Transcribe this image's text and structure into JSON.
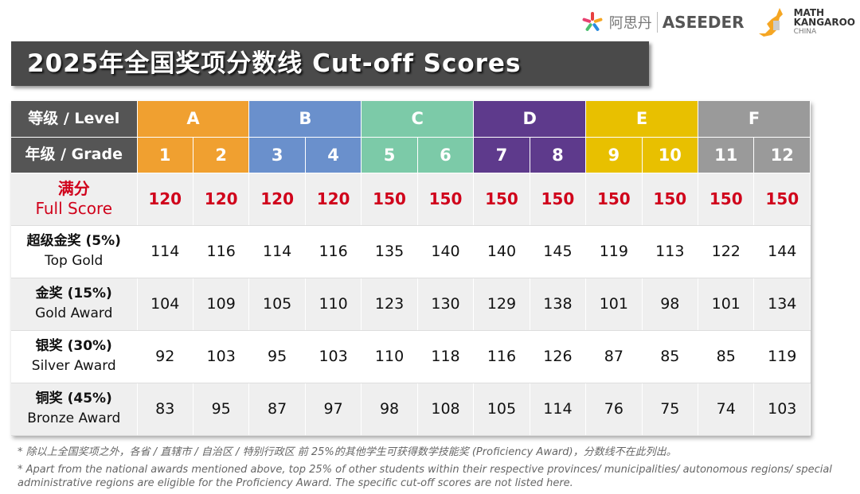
{
  "logos": {
    "aseeder_cn": "阿思丹",
    "aseeder_en": "ASEEDER",
    "mk_line1": "MATH",
    "mk_line2": "KANGAROO",
    "mk_line3": "CHINA"
  },
  "title": "2025年全国奖项分数线 Cut-off Scores",
  "header": {
    "level_label": "等级 / Level",
    "grade_label": "年级 / Grade",
    "levels": [
      {
        "name": "A",
        "color": "#f0a030"
      },
      {
        "name": "B",
        "color": "#6a90cc"
      },
      {
        "name": "C",
        "color": "#7ccaa8"
      },
      {
        "name": "D",
        "color": "#5e3a8c"
      },
      {
        "name": "E",
        "color": "#e8c000"
      },
      {
        "name": "F",
        "color": "#9a9a9a"
      }
    ],
    "grades": [
      "1",
      "2",
      "3",
      "4",
      "5",
      "6",
      "7",
      "8",
      "9",
      "10",
      "11",
      "12"
    ]
  },
  "rows": [
    {
      "cn": "满分",
      "en": "Full Score",
      "values": [
        "120",
        "120",
        "120",
        "120",
        "150",
        "150",
        "150",
        "150",
        "150",
        "150",
        "150",
        "150"
      ]
    },
    {
      "cn": "超级金奖 (5%)",
      "en": "Top Gold",
      "values": [
        "114",
        "116",
        "114",
        "116",
        "135",
        "140",
        "140",
        "145",
        "119",
        "113",
        "122",
        "144"
      ]
    },
    {
      "cn": "金奖 (15%)",
      "en": "Gold Award",
      "values": [
        "104",
        "109",
        "105",
        "110",
        "123",
        "130",
        "129",
        "138",
        "101",
        "98",
        "101",
        "134"
      ]
    },
    {
      "cn": "银奖 (30%)",
      "en": "Silver Award",
      "values": [
        "92",
        "103",
        "95",
        "103",
        "110",
        "118",
        "116",
        "126",
        "87",
        "85",
        "85",
        "119"
      ]
    },
    {
      "cn": "铜奖 (45%)",
      "en": "Bronze Award",
      "values": [
        "83",
        "95",
        "87",
        "97",
        "98",
        "108",
        "105",
        "114",
        "76",
        "75",
        "74",
        "103"
      ]
    }
  ],
  "colors": {
    "full_score": "#d0021b",
    "header_dark": "#555555"
  },
  "notes": [
    "* 除以上全国奖项之外，各省 / 直辖市 / 自治区 / 特别行政区 前 25%的其他学生可获得数学技能奖 (Proficiency Award)，分数线不在此列出。",
    "* Apart from the national awards mentioned above, top 25% of other students within their respective provinces/ municipalities/ autonomous regions/ special administrative regions are eligible for the Proficiency Award. The specific cut-off scores are not listed here."
  ]
}
